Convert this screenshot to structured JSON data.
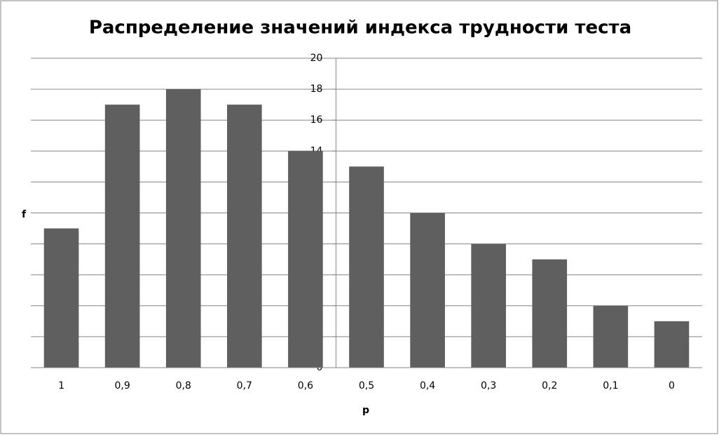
{
  "chart_data": {
    "type": "bar",
    "title": "Распределение значений индекса трудности теста",
    "x_label": "p",
    "y_label": "f",
    "categories": [
      "1",
      "0,9",
      "0,8",
      "0,7",
      "0,6",
      "0,5",
      "0,4",
      "0,3",
      "0,2",
      "0,1",
      "0"
    ],
    "values": [
      9,
      17,
      18,
      17,
      14,
      13,
      10,
      8,
      7,
      4,
      3
    ],
    "color": "#5f5f5f",
    "ylim": [
      0,
      20
    ],
    "yticks": [
      0,
      2,
      4,
      6,
      8,
      10,
      12,
      14,
      16,
      18,
      20
    ],
    "grid": true
  }
}
